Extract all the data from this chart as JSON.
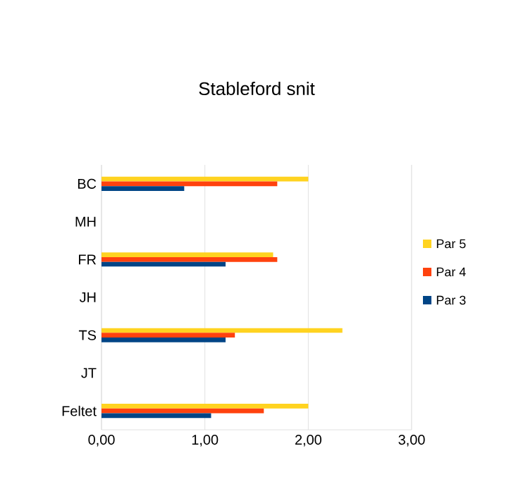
{
  "chart_data": {
    "type": "bar",
    "orientation": "horizontal",
    "title": "Stableford snit",
    "categories": [
      "BC",
      "MH",
      "FR",
      "JH",
      "TS",
      "JT",
      "Feltet"
    ],
    "series": [
      {
        "name": "Par 5",
        "color": "#ffd320",
        "values": [
          2.0,
          null,
          1.66,
          null,
          2.33,
          null,
          2.0
        ]
      },
      {
        "name": "Par 4",
        "color": "#ff420e",
        "values": [
          1.7,
          null,
          1.7,
          null,
          1.29,
          null,
          1.57
        ]
      },
      {
        "name": "Par 3",
        "color": "#004586",
        "values": [
          0.8,
          null,
          1.2,
          null,
          1.2,
          null,
          1.06
        ]
      }
    ],
    "xlim": [
      0,
      3
    ],
    "xticks": [
      {
        "value": 0,
        "label": "0,00"
      },
      {
        "value": 1,
        "label": "1,00"
      },
      {
        "value": 2,
        "label": "2,00"
      },
      {
        "value": 3,
        "label": "3,00"
      }
    ],
    "grid": "x",
    "legend": "right"
  }
}
